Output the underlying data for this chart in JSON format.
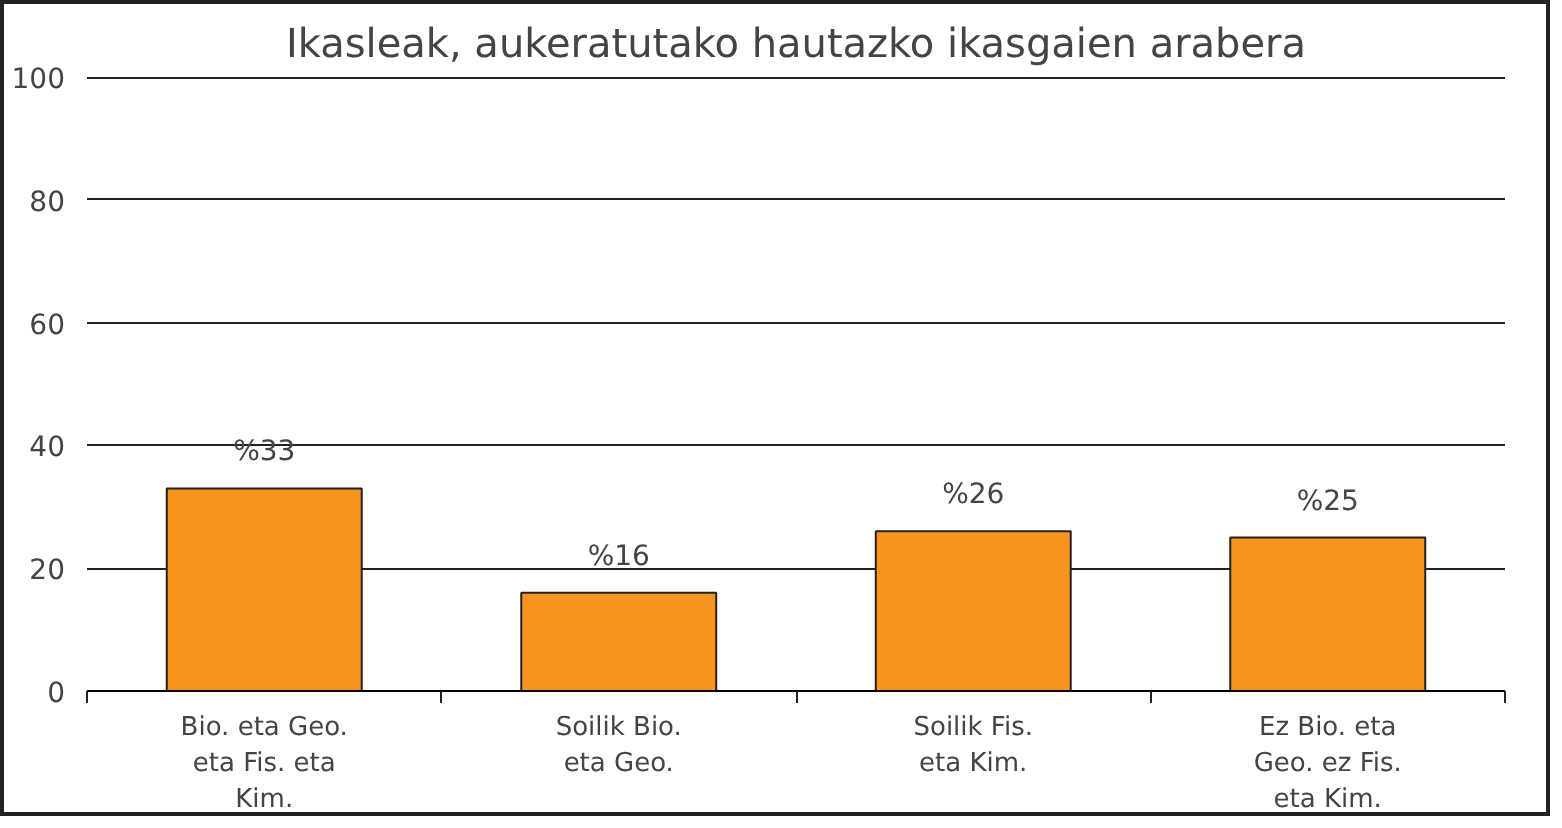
{
  "chart_data": {
    "type": "bar",
    "title": "Ikasleak, aukeratutako hautazko ikasgaien arabera",
    "categories": [
      "Bio. eta Geo. eta Fis. eta Kim.",
      "Soilik Bio. eta Geo.",
      "Soilik Fis. eta Kim.",
      "Ez Bio. eta Geo. ez Fis. eta Kim."
    ],
    "values": [
      33,
      16,
      26,
      25
    ],
    "value_labels": [
      "%33",
      "%16",
      "%26",
      "%25"
    ],
    "color": "#f7941d",
    "ylim": [
      0,
      100
    ],
    "yticks": [
      0,
      20,
      40,
      60,
      80,
      100
    ],
    "grid": "y"
  }
}
